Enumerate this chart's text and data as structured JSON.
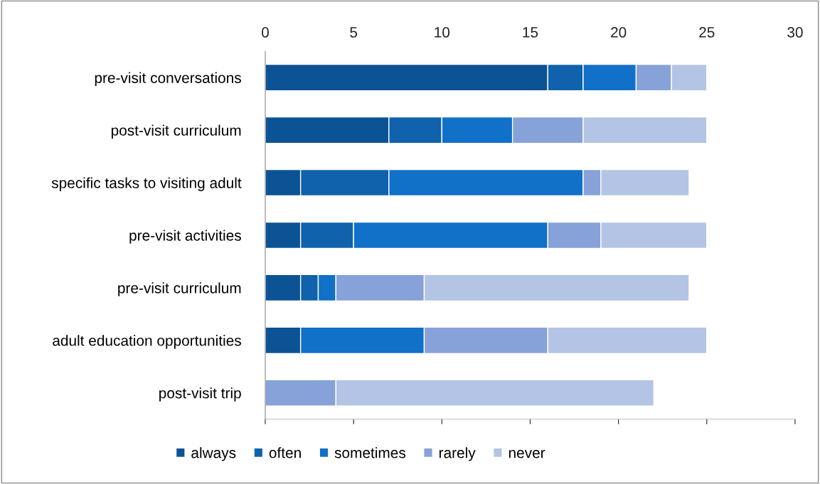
{
  "chart_data": {
    "type": "bar",
    "orientation": "horizontal",
    "stacked": true,
    "categories": [
      "pre-visit conversations",
      "post-visit curriculum",
      "specific tasks to visiting adult",
      "pre-visit activities",
      "pre-visit curriculum",
      "adult education opportunities",
      "post-visit trip"
    ],
    "series": [
      {
        "name": "always",
        "color": "#0b5394",
        "values": [
          16,
          7,
          2,
          2,
          2,
          2,
          0
        ]
      },
      {
        "name": "often",
        "color": "#0f62ab",
        "values": [
          2,
          3,
          5,
          3,
          1,
          0,
          0
        ]
      },
      {
        "name": "sometimes",
        "color": "#1170c8",
        "values": [
          3,
          4,
          11,
          11,
          1,
          7,
          0
        ]
      },
      {
        "name": "rarely",
        "color": "#87a2d8",
        "values": [
          2,
          4,
          1,
          3,
          5,
          7,
          4
        ]
      },
      {
        "name": "never",
        "color": "#b4c4e4",
        "values": [
          2,
          7,
          5,
          6,
          15,
          9,
          18
        ]
      }
    ],
    "xlim": [
      0,
      30
    ],
    "xticks": [
      0,
      5,
      10,
      15,
      20,
      25,
      30
    ],
    "grid": false,
    "legend": "bottom"
  }
}
